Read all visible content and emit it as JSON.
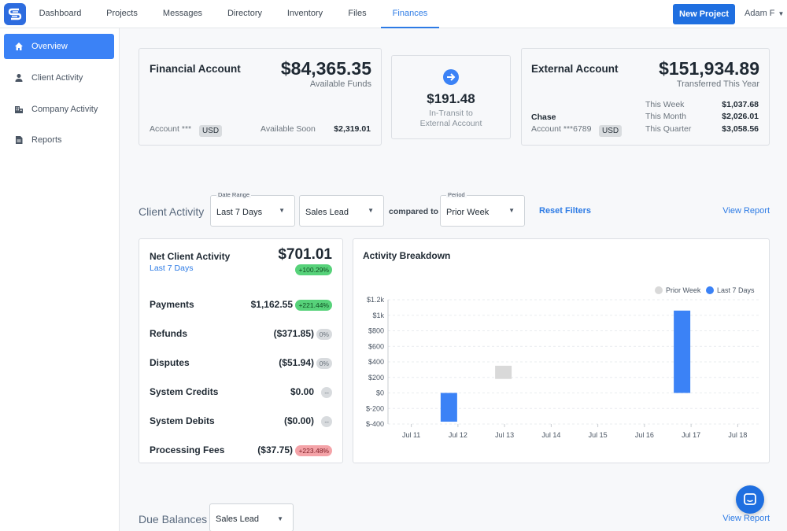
{
  "nav": {
    "logo": "app-logo",
    "tabs": [
      "Dashboard",
      "Projects",
      "Messages",
      "Directory",
      "Inventory",
      "Files",
      "Finances"
    ],
    "active_tab": "Finances",
    "new_project_label": "New Project",
    "user_label": "Adam F"
  },
  "sidebar": {
    "items": [
      {
        "label": "Overview",
        "icon": "home-icon",
        "active": true
      },
      {
        "label": "Client Activity",
        "icon": "user-icon",
        "active": false
      },
      {
        "label": "Company Activity",
        "icon": "building-icon",
        "active": false
      },
      {
        "label": "Reports",
        "icon": "document-icon",
        "active": false
      }
    ]
  },
  "financial_account": {
    "title": "Financial Account",
    "amount": "$84,365.35",
    "amount_label": "Available Funds",
    "account_label": "Account ***",
    "currency": "USD",
    "available_soon_label": "Available Soon",
    "available_soon_value": "$2,319.01"
  },
  "in_transit": {
    "amount": "$191.48",
    "line1": "In-Transit to",
    "line2": "External Account"
  },
  "external_account": {
    "title": "External Account",
    "amount": "$151,934.89",
    "amount_label": "Transferred This Year",
    "bank": "Chase",
    "account_label": "Account ***6789",
    "currency": "USD",
    "stats": [
      {
        "label": "This Week",
        "value": "$1,037.68"
      },
      {
        "label": "This Month",
        "value": "$2,026.01"
      },
      {
        "label": "This Quarter",
        "value": "$3,058.56"
      }
    ]
  },
  "client_activity": {
    "heading": "Client Activity",
    "date_range": {
      "caption": "Date Range",
      "value": "Last 7 Days"
    },
    "lead": {
      "value": "Sales Lead"
    },
    "compared_to": "compared to",
    "period": {
      "caption": "Period",
      "value": "Prior Week"
    },
    "reset_filters": "Reset Filters",
    "view_report": "View Report"
  },
  "net_activity": {
    "title": "Net Client Activity",
    "subtitle": "Last 7 Days",
    "amount": "$701.01",
    "badge": "+100.29%",
    "rows": [
      {
        "label": "Payments",
        "value": "$1,162.55",
        "badge": "+221.44%",
        "tone": "green"
      },
      {
        "label": "Refunds",
        "value": "($371.85)",
        "badge": "0%",
        "tone": "gray"
      },
      {
        "label": "Disputes",
        "value": "($51.94)",
        "badge": "0%",
        "tone": "gray"
      },
      {
        "label": "System Credits",
        "value": "$0.00",
        "badge": "--",
        "tone": "gray"
      },
      {
        "label": "System Debits",
        "value": "($0.00)",
        "badge": "--",
        "tone": "gray"
      },
      {
        "label": "Processing Fees",
        "value": "($37.75)",
        "badge": "+223.48%",
        "tone": "red"
      }
    ]
  },
  "chart_data": {
    "type": "bar",
    "title": "Activity Breakdown",
    "categories": [
      "Jul 11",
      "Jul 12",
      "Jul 13",
      "Jul 14",
      "Jul 15",
      "Jul 16",
      "Jul 17",
      "Jul 18"
    ],
    "series": [
      {
        "name": "Prior Week",
        "color": "#d9d9d9",
        "ranges": [
          null,
          null,
          [
            180,
            350
          ],
          null,
          null,
          null,
          null,
          null
        ]
      },
      {
        "name": "Last 7 Days",
        "color": "#3b82f6",
        "ranges": [
          null,
          [
            -370,
            0
          ],
          null,
          null,
          null,
          null,
          [
            0,
            1060
          ],
          null
        ]
      }
    ],
    "ylim": [
      -400,
      1200
    ],
    "yticks": [
      "$-400",
      "$-200",
      "$0",
      "$200",
      "$400",
      "$600",
      "$800",
      "$1k",
      "$1.2k"
    ],
    "legend": "top-right",
    "grid": true
  },
  "due_balances": {
    "heading": "Due Balances",
    "lead": {
      "value": "Sales Lead"
    },
    "view_report": "View Report"
  }
}
